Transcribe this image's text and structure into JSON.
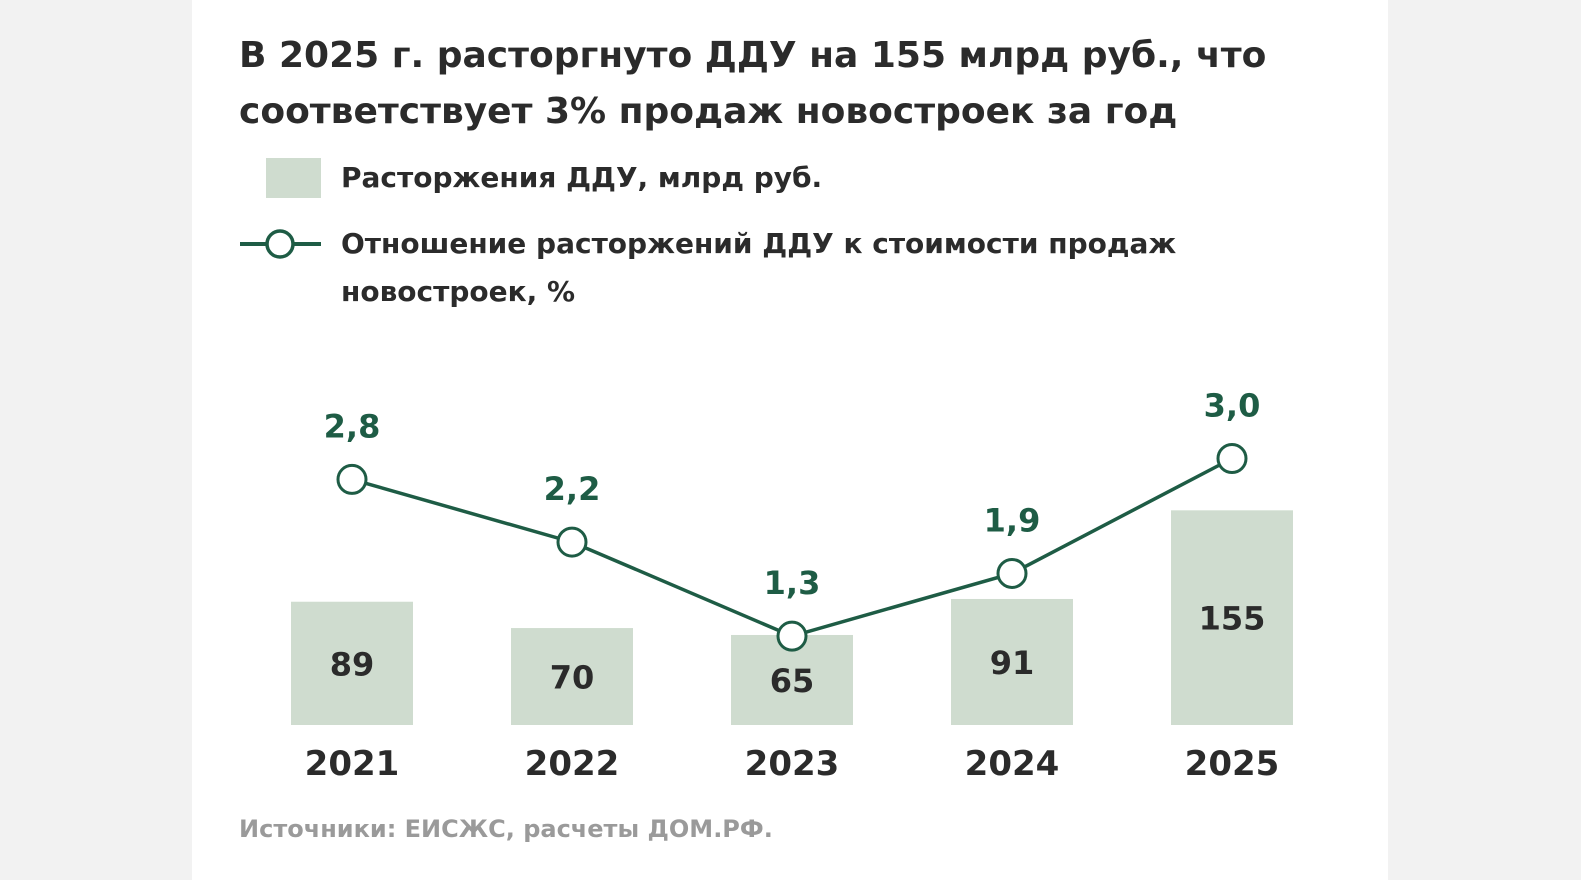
{
  "chart_data": {
    "type": "bar",
    "title": "В 2025 г. расторгнуто ДДУ на 155 млрд руб., что соответствует 3% продаж новостроек за год",
    "categories": [
      "2021",
      "2022",
      "2023",
      "2024",
      "2025"
    ],
    "series": [
      {
        "name": "Расторжения ДДУ, млрд руб.",
        "kind": "bar",
        "values": [
          89,
          70,
          65,
          91,
          155
        ],
        "labels": [
          "89",
          "70",
          "65",
          "91",
          "155"
        ],
        "color": "#cfdccf"
      },
      {
        "name": "Отношение расторжений ДДУ к стоимости продаж новостроек, %",
        "kind": "line",
        "values": [
          2.8,
          2.2,
          1.3,
          1.9,
          3.0
        ],
        "labels": [
          "2,8",
          "2,2",
          "1,3",
          "1,9",
          "3,0"
        ],
        "color": "#1e5c45"
      }
    ],
    "legend": "top-left",
    "grid": false,
    "source": "Источники: ЕИСЖС, расчеты ДОМ.РФ."
  },
  "colors": {
    "bar": "#cfdccf",
    "line": "#1e5c45",
    "text": "#2b2b2b",
    "muted": "#9a9a9a"
  }
}
